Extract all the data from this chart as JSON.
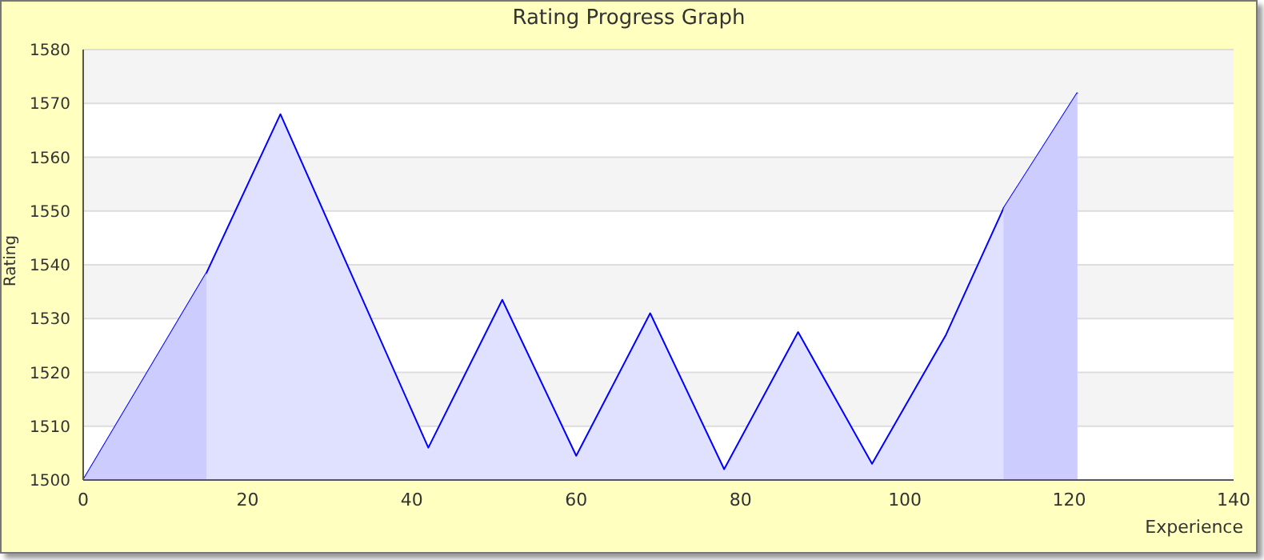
{
  "chart_data": {
    "type": "area",
    "title": "Rating Progress Graph",
    "xlabel": "Experience",
    "ylabel": "Rating",
    "x": [
      0,
      15,
      24,
      42,
      51,
      60,
      69,
      78,
      87,
      96,
      105,
      112,
      121
    ],
    "series": [
      {
        "color": "#0000ff",
        "values": [
          1500,
          1538.5,
          1568,
          1506,
          1533.5,
          1504.5,
          1531,
          1502,
          1527.5,
          1503,
          1527,
          1550.5,
          1572
        ]
      }
    ],
    "xlim": [
      0,
      140
    ],
    "xticks": [
      0,
      20,
      40,
      60,
      80,
      100,
      120,
      140
    ],
    "ylim": [
      1500,
      1580
    ],
    "yticks": [
      1500,
      1510,
      1520,
      1530,
      1540,
      1550,
      1560,
      1570,
      1580
    ],
    "bands": [
      {
        "axis": "x",
        "from": 0,
        "to": 15,
        "color": "#ccccff"
      },
      {
        "axis": "x",
        "from": 112,
        "to": 121,
        "color": "#ccccff"
      }
    ],
    "grid": "y",
    "legend": false,
    "marker": "none",
    "line_style": "solid"
  }
}
